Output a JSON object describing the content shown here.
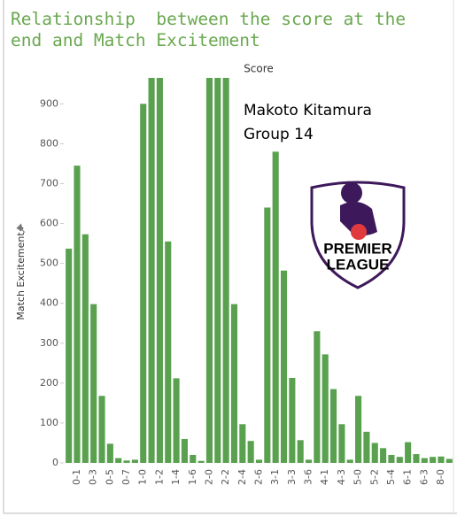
{
  "chart_data": {
    "type": "bar",
    "title": "Relationship  between the score at the end and Match Excitement",
    "subtitle": "Score",
    "y_label": "Match Excitement",
    "annotation": [
      "Makoto Kitamura",
      "Group 14"
    ],
    "logo": [
      "PREMIER",
      "LEAGUE"
    ],
    "categories": [
      null,
      "0-1",
      null,
      "0-3",
      null,
      "0-5",
      null,
      "0-7",
      null,
      "1-0",
      null,
      "1-2",
      null,
      "1-4",
      null,
      "1-6",
      null,
      "2-0",
      null,
      "2-2",
      null,
      "2-4",
      null,
      "2-6",
      null,
      "3-1",
      null,
      "3-3",
      null,
      "3-6",
      null,
      "4-1",
      null,
      "4-3",
      null,
      "5-0",
      null,
      "5-2",
      null,
      "5-4",
      null,
      "6-1",
      null,
      "6-3",
      null,
      "8-0",
      null
    ],
    "values": [
      537,
      745,
      573,
      398,
      168,
      48,
      12,
      6,
      8,
      900,
      965,
      965,
      555,
      212,
      60,
      20,
      5,
      965,
      965,
      965,
      398,
      97,
      55,
      8,
      640,
      780,
      482,
      213,
      57,
      8,
      330,
      272,
      185,
      97,
      8,
      168,
      78,
      50,
      37,
      20,
      15,
      52,
      22,
      12,
      15,
      16,
      10
    ],
    "color": "#59a14f",
    "ylim": [
      0,
      965
    ],
    "yticks": [
      0,
      100,
      200,
      300,
      400,
      500,
      600,
      700,
      800,
      900
    ],
    "grid": false
  }
}
